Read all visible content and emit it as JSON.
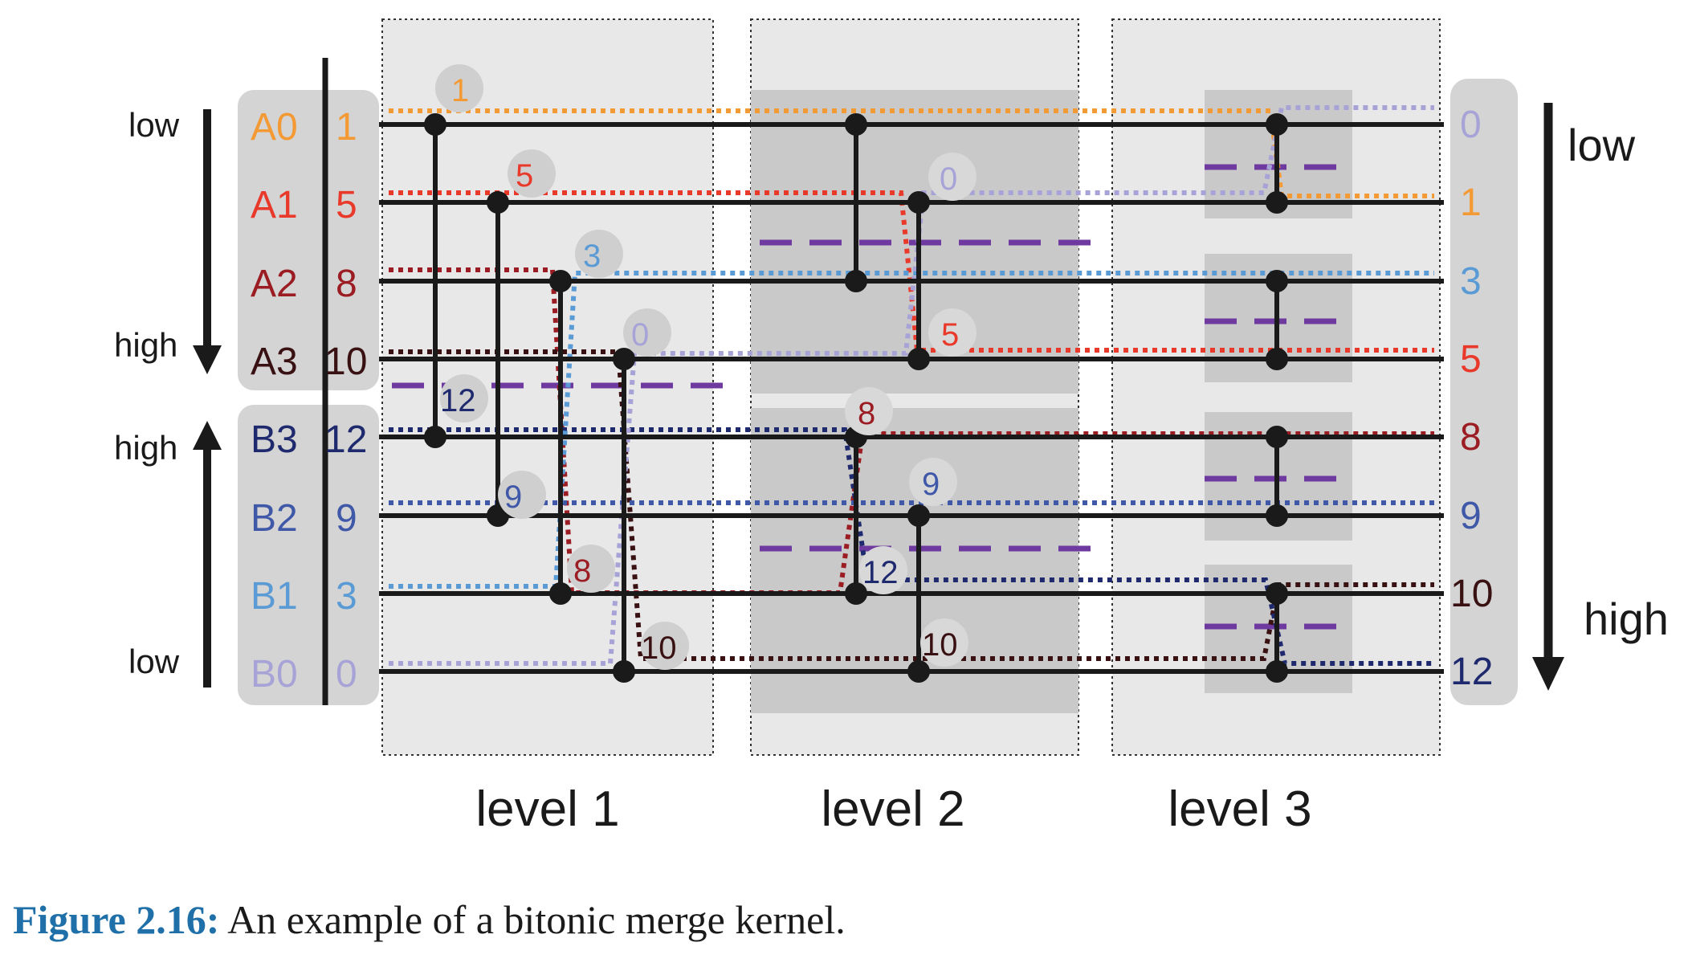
{
  "colors": {
    "A0": "#f39a35",
    "A1": "#e8392b",
    "A2": "#9b1c22",
    "A3": "#3a1113",
    "B3": "#1f2a6e",
    "B2": "#3f58a8",
    "B1": "#5b9bd5",
    "B0": "#a7a3d6",
    "divider": "#6e3aa0",
    "panel": "#e8e8e8",
    "panel_dark": "#c9c9c9",
    "label_bg": "#d4d4d4"
  },
  "left_labels": {
    "low_top": "low",
    "high_top": "high",
    "high_bottom": "high",
    "low_bottom": "low"
  },
  "right_labels": {
    "low": "low",
    "high": "high"
  },
  "inputs": [
    {
      "name": "A0",
      "value": "1",
      "color_key": "A0"
    },
    {
      "name": "A1",
      "value": "5",
      "color_key": "A1"
    },
    {
      "name": "A2",
      "value": "8",
      "color_key": "A2"
    },
    {
      "name": "A3",
      "value": "10",
      "color_key": "A3"
    },
    {
      "name": "B3",
      "value": "12",
      "color_key": "B3"
    },
    {
      "name": "B2",
      "value": "9",
      "color_key": "B2"
    },
    {
      "name": "B1",
      "value": "3",
      "color_key": "B1"
    },
    {
      "name": "B0",
      "value": "0",
      "color_key": "B0"
    }
  ],
  "outputs": [
    {
      "value": "0",
      "color_key": "B0"
    },
    {
      "value": "1",
      "color_key": "A0"
    },
    {
      "value": "3",
      "color_key": "B1"
    },
    {
      "value": "5",
      "color_key": "A1"
    },
    {
      "value": "8",
      "color_key": "A2"
    },
    {
      "value": "9",
      "color_key": "B2"
    },
    {
      "value": "10",
      "color_key": "A3"
    },
    {
      "value": "12",
      "color_key": "B3"
    }
  ],
  "levels": [
    "level 1",
    "level 2",
    "level 3"
  ],
  "bubbles": {
    "l1": [
      "1",
      "5",
      "3",
      "0",
      "12",
      "9",
      "8",
      "10"
    ],
    "l2": [
      "0",
      "5",
      "8",
      "9",
      "12",
      "10"
    ]
  },
  "caption": {
    "label": "Figure 2.16:",
    "text": " An example of a bitonic merge kernel."
  }
}
